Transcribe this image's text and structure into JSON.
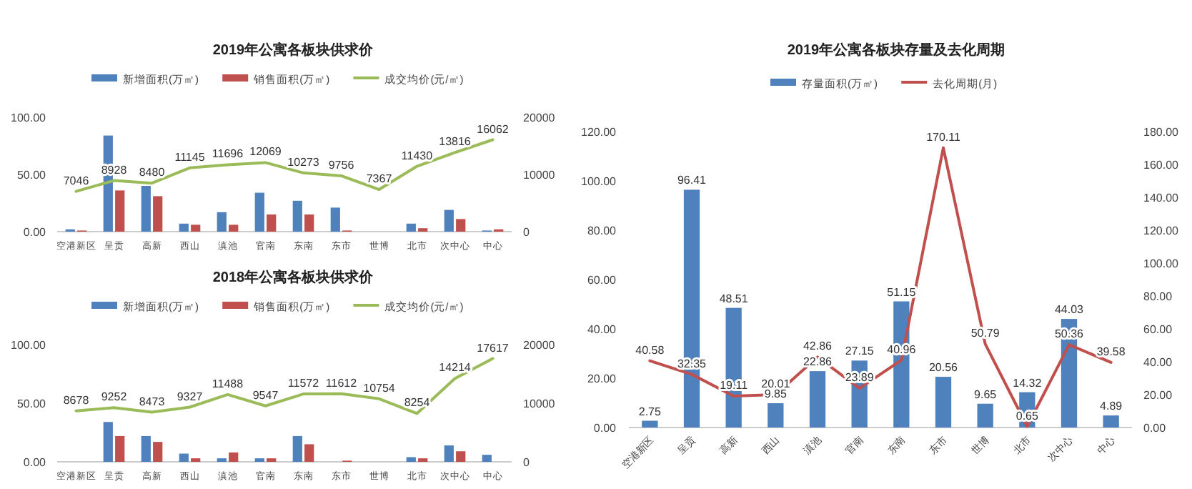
{
  "chart_data": [
    {
      "type": "bar",
      "title": "2019年公寓各板块供求价",
      "categories": [
        "空港新区",
        "呈贡",
        "高新",
        "西山",
        "滇池",
        "官南",
        "东南",
        "东市",
        "世博",
        "北市",
        "次中心",
        "中心"
      ],
      "series": [
        {
          "name": "新增面积(万㎡)",
          "color": "#4f81bd",
          "values": [
            2,
            84,
            40,
            7,
            17,
            34,
            27,
            21,
            0,
            7,
            19,
            1
          ]
        },
        {
          "name": "销售面积(万㎡)",
          "color": "#c0504d",
          "values": [
            1,
            36,
            31,
            6,
            6,
            15,
            15,
            1,
            0,
            3,
            11,
            2
          ]
        },
        {
          "name": "成交均价(元/㎡)",
          "type": "line",
          "axis": "y2",
          "color": "#9bbb59",
          "values": [
            7046,
            8928,
            8480,
            11145,
            11696,
            12069,
            10273,
            9756,
            7367,
            11430,
            13816,
            16062
          ],
          "value_labels": [
            "7046",
            "8928",
            "8480",
            "11145",
            "11696",
            "12069",
            "10273",
            "9756",
            "7367",
            "11430",
            "13816",
            "16062"
          ]
        }
      ],
      "ylim": [
        0,
        100
      ],
      "yticks": [
        {
          "value": 0,
          "label": "0.00"
        },
        {
          "value": 50,
          "label": "50.00"
        },
        {
          "value": 100,
          "label": "100.00"
        }
      ],
      "y2lim": [
        0,
        20000
      ],
      "y2ticks": [
        0,
        10000,
        20000
      ],
      "legend": "top"
    },
    {
      "type": "bar",
      "title": "2018年公寓各板块供求价",
      "categories": [
        "空港新区",
        "呈贡",
        "高新",
        "西山",
        "滇池",
        "官南",
        "东南",
        "东市",
        "世博",
        "北市",
        "次中心",
        "中心"
      ],
      "series": [
        {
          "name": "新增面积(万㎡)",
          "color": "#4f81bd",
          "values": [
            0,
            34,
            22,
            7,
            3,
            3,
            22,
            0,
            0,
            4,
            14,
            6
          ]
        },
        {
          "name": "销售面积(万㎡)",
          "color": "#c0504d",
          "values": [
            0,
            22,
            17,
            3,
            8,
            3,
            15,
            1,
            0,
            3,
            9,
            0
          ]
        },
        {
          "name": "成交均价(元/㎡)",
          "type": "line",
          "axis": "y2",
          "color": "#9bbb59",
          "values": [
            8678,
            9252,
            8473,
            9327,
            11488,
            9547,
            11572,
            11612,
            10754,
            8254,
            14214,
            17617
          ],
          "value_labels": [
            "8678",
            "9252",
            "8473",
            "9327",
            "11488",
            "9547",
            "11572",
            "11612",
            "10754",
            "8254",
            "14214",
            "17617"
          ]
        }
      ],
      "ylim": [
        0,
        100
      ],
      "yticks": [
        {
          "value": 0,
          "label": "0.00"
        },
        {
          "value": 50,
          "label": "50.00"
        },
        {
          "value": 100,
          "label": "100.00"
        }
      ],
      "y2lim": [
        0,
        20000
      ],
      "y2ticks": [
        0,
        10000,
        20000
      ],
      "legend": "top"
    },
    {
      "type": "bar",
      "title": "2019年公寓各板块存量及去化周期",
      "categories": [
        "空港新区",
        "呈贡",
        "高新",
        "西山",
        "滇池",
        "官南",
        "东南",
        "东市",
        "世博",
        "北市",
        "次中心",
        "中心"
      ],
      "series": [
        {
          "name": "存量面积(万㎡)",
          "color": "#4f81bd",
          "values": [
            2.75,
            96.41,
            48.51,
            9.85,
            22.86,
            27.15,
            51.15,
            20.56,
            9.65,
            14.32,
            44.03,
            4.89
          ]
        },
        {
          "name": "去化周期(月)",
          "type": "line",
          "axis": "y2",
          "color": "#c0504d",
          "values": [
            40.58,
            32.35,
            19.11,
            20.01,
            42.86,
            23.89,
            40.96,
            170.11,
            50.79,
            0.65,
            50.36,
            39.58
          ]
        }
      ],
      "ylim": [
        0,
        120
      ],
      "yticks": [
        {
          "value": 0,
          "label": "0.00"
        },
        {
          "value": 20,
          "label": "20.00"
        },
        {
          "value": 40,
          "label": "40.00"
        },
        {
          "value": 60,
          "label": "60.00"
        },
        {
          "value": 80,
          "label": "80.00"
        },
        {
          "value": 100,
          "label": "100.00"
        },
        {
          "value": 120,
          "label": "120.00"
        }
      ],
      "y2lim": [
        0,
        180
      ],
      "y2ticks": [
        {
          "value": 0,
          "label": "0.00"
        },
        {
          "value": 20,
          "label": "20.00"
        },
        {
          "value": 40,
          "label": "40.00"
        },
        {
          "value": 60,
          "label": "60.00"
        },
        {
          "value": 80,
          "label": "80.00"
        },
        {
          "value": 100,
          "label": "100.00"
        },
        {
          "value": 120,
          "label": "120.00"
        },
        {
          "value": 140,
          "label": "140.00"
        },
        {
          "value": 160,
          "label": "160.00"
        },
        {
          "value": 180,
          "label": "180.00"
        }
      ],
      "data_labels": true,
      "legend": "top"
    }
  ]
}
